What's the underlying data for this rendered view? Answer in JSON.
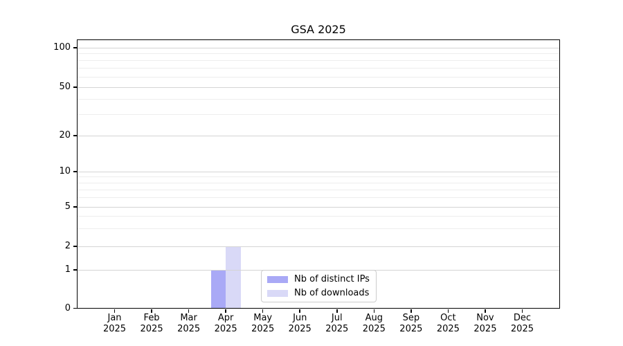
{
  "chart_data": {
    "type": "bar",
    "title": "GSA 2025",
    "categories": [
      "Jan",
      "Feb",
      "Mar",
      "Apr",
      "May",
      "Jun",
      "Jul",
      "Aug",
      "Sep",
      "Oct",
      "Nov",
      "Dec"
    ],
    "category_year": "2025",
    "series": [
      {
        "name": "Nb of distinct IPs",
        "color": "#a9a9f6",
        "values": [
          0,
          0,
          0,
          1,
          0,
          0,
          0,
          0,
          0,
          0,
          0,
          0
        ]
      },
      {
        "name": "Nb of downloads",
        "color": "#d9d9f7",
        "values": [
          0,
          0,
          0,
          2,
          0,
          0,
          0,
          0,
          0,
          0,
          0,
          0
        ]
      }
    ],
    "xlabel": "",
    "ylabel": "",
    "yscale": "symlog",
    "ylim": [
      0,
      100
    ],
    "y_ticks": [
      0,
      1,
      2,
      5,
      10,
      20,
      50,
      100
    ],
    "y_minor_ticks": [
      3,
      4,
      6,
      7,
      8,
      9,
      30,
      40,
      60,
      70,
      80,
      90
    ],
    "grid": "on",
    "legend_position": "inside-bottom-center"
  },
  "colors": {
    "background": "#ffffff",
    "spine": "#000000",
    "text": "#000000",
    "grid_major": "#d4d4d4",
    "grid_minor": "#ededed",
    "legend_border": "#cccccc",
    "legend_background": "#ffffff"
  }
}
